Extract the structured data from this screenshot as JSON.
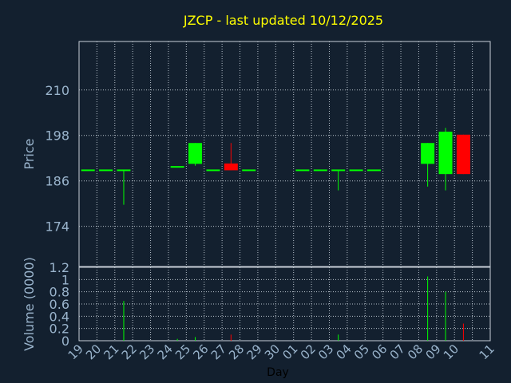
{
  "chart_data": {
    "type": "candlestick",
    "title": "JZCP - last updated 10/12/2025",
    "price_panel": {
      "ylabel": "Price",
      "yticks": [
        174,
        186,
        198,
        210
      ],
      "ylim": [
        163.4,
        222.8
      ],
      "grid": true
    },
    "volume_panel": {
      "ylabel": "Volume (0000)",
      "yticks": [
        "0",
        "0.2",
        "0.4",
        "0.6",
        "0.8",
        "1",
        "1.2"
      ],
      "ylim": [
        0,
        1.2
      ],
      "grid": true
    },
    "xlabel": "Day",
    "x_ticks": [
      "19",
      "20",
      "21",
      "22",
      "23",
      "24",
      "25",
      "26",
      "27",
      "28",
      "29",
      "30",
      "01",
      "02",
      "03",
      "04",
      "05",
      "06",
      "07",
      "08",
      "09",
      "10",
      "11"
    ],
    "candles": [
      {
        "day": "19",
        "open": 188.8,
        "high": 188.8,
        "low": 188.8,
        "close": 188.8,
        "volume": 0.0
      },
      {
        "day": "20",
        "open": 188.8,
        "high": 188.8,
        "low": 188.8,
        "close": 188.8,
        "volume": 0.0
      },
      {
        "day": "21",
        "open": 188.8,
        "high": 188.8,
        "low": 179.7,
        "close": 188.8,
        "volume": 0.65
      },
      {
        "day": "24",
        "open": 189.7,
        "high": 189.7,
        "low": 189.7,
        "close": 189.7,
        "volume": 0.03
      },
      {
        "day": "25",
        "open": 190.5,
        "high": 196.0,
        "low": 190.0,
        "close": 196.0,
        "volume": 0.06
      },
      {
        "day": "26",
        "open": 188.8,
        "high": 188.8,
        "low": 188.8,
        "close": 188.8,
        "volume": 0.0
      },
      {
        "day": "27",
        "open": 190.6,
        "high": 196.0,
        "low": 188.8,
        "close": 188.8,
        "volume": 0.1
      },
      {
        "day": "28",
        "open": 188.8,
        "high": 188.8,
        "low": 188.8,
        "close": 188.8,
        "volume": 0.0
      },
      {
        "day": "01",
        "open": 188.8,
        "high": 188.8,
        "low": 188.8,
        "close": 188.8,
        "volume": 0.0
      },
      {
        "day": "02",
        "open": 188.8,
        "high": 188.8,
        "low": 188.8,
        "close": 188.8,
        "volume": 0.0
      },
      {
        "day": "03",
        "open": 188.8,
        "high": 188.8,
        "low": 183.5,
        "close": 188.8,
        "volume": 0.1
      },
      {
        "day": "04",
        "open": 188.8,
        "high": 188.8,
        "low": 188.8,
        "close": 188.8,
        "volume": 0.0
      },
      {
        "day": "05",
        "open": 188.8,
        "high": 188.8,
        "low": 188.8,
        "close": 188.8,
        "volume": 0.0
      },
      {
        "day": "08",
        "open": 190.5,
        "high": 196.0,
        "low": 184.5,
        "close": 196.0,
        "volume": 1.05
      },
      {
        "day": "09",
        "open": 187.8,
        "high": 200.0,
        "low": 183.5,
        "close": 199.0,
        "volume": 0.8
      },
      {
        "day": "10",
        "open": 198.2,
        "high": 198.2,
        "low": 187.8,
        "close": 187.8,
        "volume": 0.28
      }
    ],
    "colors": {
      "background": "#13202f",
      "text": "#9ab4cc",
      "title": "#ffff00",
      "up": "#00ff00",
      "down": "#ff0000",
      "grid": "#b8c2cc"
    }
  }
}
